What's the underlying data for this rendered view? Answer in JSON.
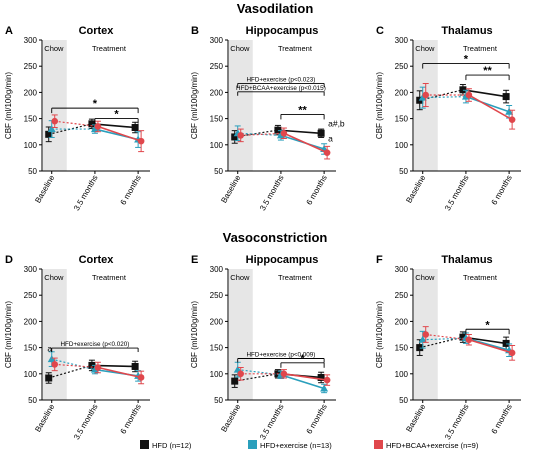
{
  "section_titles": [
    "Vasodilation",
    "Vasoconstriction"
  ],
  "legend": [
    {
      "label": "HFD (n=12)",
      "color": "#111111"
    },
    {
      "label": "HFD+exercise (n=13)",
      "color": "#2a9fbc"
    },
    {
      "label": "HFD+BCAA+exercise (n=9)",
      "color": "#e0474c"
    }
  ],
  "chart_data": [
    {
      "panel": "A",
      "title": "Cortex",
      "type": "line",
      "xlabel": "",
      "ylabel": "CBF (ml/100g/min)",
      "ylim": [
        50,
        300
      ],
      "yticks": [
        "50",
        "100",
        "150",
        "200",
        "250",
        "300"
      ],
      "categories": [
        "Baseline",
        "3.5 months",
        "6 months"
      ],
      "shaded_label": "Chow",
      "unshaded_label": "Treatment",
      "series": [
        {
          "name": "HFD (n=12)",
          "values": [
            120,
            140,
            133
          ],
          "err": [
            14,
            9,
            10
          ]
        },
        {
          "name": "HFD+exercise (n=13)",
          "values": [
            130,
            130,
            110
          ],
          "err": [
            16,
            8,
            15
          ]
        },
        {
          "name": "HFD+BCAA+exercise (n=9)",
          "values": [
            145,
            135,
            107
          ],
          "err": [
            12,
            10,
            20
          ]
        }
      ],
      "annotations": {
        "brackets": [
          {
            "label": "*",
            "from": "Baseline",
            "to": "6 months",
            "y": 170
          },
          {
            "label": "*",
            "from": "3.5 months",
            "to": "6 months",
            "y": 150
          }
        ],
        "notes": [],
        "point_marks": []
      }
    },
    {
      "panel": "B",
      "title": "Hippocampus",
      "type": "line",
      "xlabel": "",
      "ylabel": "CBF (ml/100g/min)",
      "ylim": [
        50,
        300
      ],
      "yticks": [
        "50",
        "100",
        "150",
        "200",
        "250",
        "300"
      ],
      "categories": [
        "Baseline",
        "3.5 months",
        "6 months"
      ],
      "shaded_label": "Chow",
      "unshaded_label": "Treatment",
      "series": [
        {
          "name": "HFD (n=12)",
          "values": [
            115,
            128,
            122
          ],
          "err": [
            12,
            9,
            8
          ]
        },
        {
          "name": "HFD+exercise (n=13)",
          "values": [
            122,
            118,
            92
          ],
          "err": [
            14,
            9,
            10
          ]
        },
        {
          "name": "HFD+BCAA+exercise (n=9)",
          "values": [
            118,
            122,
            85
          ],
          "err": [
            12,
            10,
            12
          ]
        }
      ],
      "annotations": {
        "brackets": [
          {
            "label": "**",
            "from": "3.5 months",
            "to": "6 months",
            "y": 158
          }
        ],
        "notes": [
          {
            "text": "HFD+exercise (p<0.023)",
            "y": 221
          },
          {
            "text": "HFD+BCAA+exercise (p<0.015)",
            "y": 205
          }
        ],
        "point_marks": [
          {
            "text": "a#,b",
            "x": "6 months",
            "y": 135
          },
          {
            "text": "a",
            "x": "6 months",
            "y": 106
          }
        ]
      }
    },
    {
      "panel": "C",
      "title": "Thalamus",
      "type": "line",
      "xlabel": "",
      "ylabel": "CBF (ml/100g/min)",
      "ylim": [
        50,
        300
      ],
      "yticks": [
        "50",
        "100",
        "150",
        "200",
        "250",
        "300"
      ],
      "categories": [
        "Baseline",
        "3.5 months",
        "6 months"
      ],
      "shaded_label": "Chow",
      "unshaded_label": "Treatment",
      "series": [
        {
          "name": "HFD (n=12)",
          "values": [
            185,
            205,
            192
          ],
          "err": [
            18,
            10,
            12
          ]
        },
        {
          "name": "HFD+exercise (n=13)",
          "values": [
            190,
            192,
            163
          ],
          "err": [
            20,
            12,
            12
          ]
        },
        {
          "name": "HFD+BCAA+exercise (n=9)",
          "values": [
            195,
            195,
            148
          ],
          "err": [
            22,
            12,
            18
          ]
        }
      ],
      "annotations": {
        "brackets": [
          {
            "label": "*",
            "from": "Baseline",
            "to": "6 months",
            "y": 255
          },
          {
            "label": "**",
            "from": "3.5 months",
            "to": "6 months",
            "y": 233
          }
        ],
        "notes": [],
        "point_marks": []
      }
    },
    {
      "panel": "D",
      "title": "Cortex",
      "type": "line",
      "xlabel": "",
      "ylabel": "CBF (ml/100g/min)",
      "ylim": [
        50,
        300
      ],
      "yticks": [
        "50",
        "100",
        "150",
        "200",
        "250",
        "300"
      ],
      "categories": [
        "Baseline",
        "3.5 months",
        "6 months"
      ],
      "shaded_label": "Chow",
      "unshaded_label": "Treatment",
      "series": [
        {
          "name": "HFD (n=12)",
          "values": [
            92,
            116,
            114
          ],
          "err": [
            10,
            10,
            10
          ]
        },
        {
          "name": "HFD+exercise (n=13)",
          "values": [
            128,
            108,
            96
          ],
          "err": [
            14,
            8,
            10
          ]
        },
        {
          "name": "HFD+BCAA+exercise (n=9)",
          "values": [
            118,
            112,
            93
          ],
          "err": [
            12,
            10,
            12
          ]
        }
      ],
      "annotations": {
        "brackets": [],
        "notes": [
          {
            "text": "HFD+exercise (p<0.020)",
            "y": 153
          }
        ],
        "point_marks": [
          {
            "text": "a",
            "x": "Baseline",
            "y": 143
          }
        ]
      }
    },
    {
      "panel": "E",
      "title": "Hippocampus",
      "type": "line",
      "xlabel": "",
      "ylabel": "CBF (ml/100g/min)",
      "ylim": [
        50,
        300
      ],
      "yticks": [
        "50",
        "100",
        "150",
        "200",
        "250",
        "300"
      ],
      "categories": [
        "Baseline",
        "3.5 months",
        "6 months"
      ],
      "shaded_label": "Chow",
      "unshaded_label": "Treatment",
      "series": [
        {
          "name": "HFD (n=12)",
          "values": [
            86,
            100,
            93
          ],
          "err": [
            12,
            8,
            10
          ]
        },
        {
          "name": "HFD+exercise (n=13)",
          "values": [
            108,
            98,
            72
          ],
          "err": [
            14,
            7,
            8
          ]
        },
        {
          "name": "HFD+BCAA+exercise (n=9)",
          "values": [
            100,
            100,
            88
          ],
          "err": [
            12,
            8,
            10
          ]
        }
      ],
      "annotations": {
        "brackets": [
          {
            "label": "*",
            "from": "3.5 months",
            "to": "6 months",
            "y": 121
          }
        ],
        "notes": [
          {
            "text": "HFD+exercise (p<0.009)",
            "y": 133
          }
        ],
        "point_marks": []
      }
    },
    {
      "panel": "F",
      "title": "Thalamus",
      "type": "line",
      "xlabel": "",
      "ylabel": "CBF (ml/100g/min)",
      "ylim": [
        50,
        300
      ],
      "yticks": [
        "50",
        "100",
        "150",
        "200",
        "250",
        "300"
      ],
      "categories": [
        "Baseline",
        "3.5 months",
        "6 months"
      ],
      "shaded_label": "Chow",
      "unshaded_label": "Treatment",
      "series": [
        {
          "name": "HFD (n=12)",
          "values": [
            150,
            170,
            158
          ],
          "err": [
            15,
            10,
            12
          ]
        },
        {
          "name": "HFD+exercise (n=13)",
          "values": [
            165,
            168,
            145
          ],
          "err": [
            16,
            10,
            12
          ]
        },
        {
          "name": "HFD+BCAA+exercise (n=9)",
          "values": [
            175,
            165,
            140
          ],
          "err": [
            15,
            10,
            14
          ]
        }
      ],
      "annotations": {
        "brackets": [
          {
            "label": "*",
            "from": "3.5 months",
            "to": "6 months",
            "y": 185
          }
        ],
        "notes": [],
        "point_marks": []
      }
    }
  ]
}
